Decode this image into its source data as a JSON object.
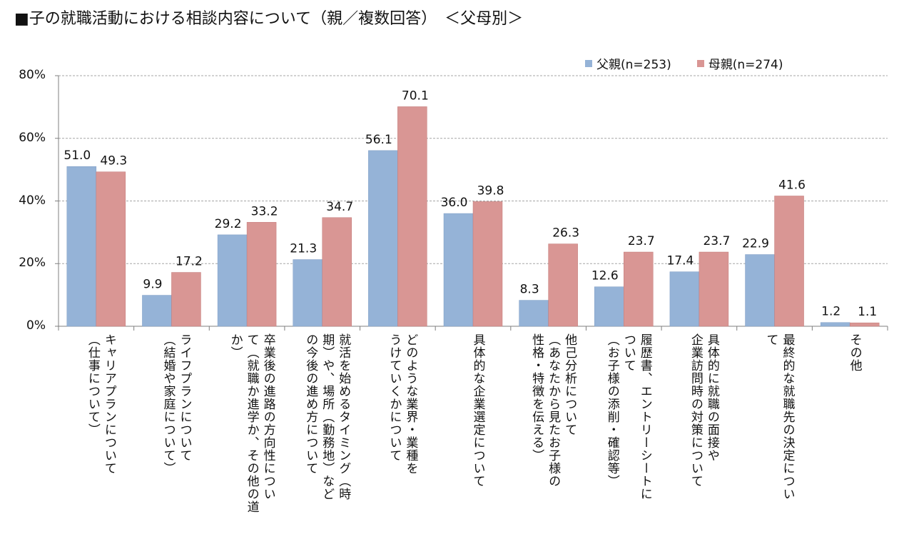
{
  "title": "■子の就職活動における相談内容について（親／複数回答）　＜父母別＞",
  "colors": {
    "father": "#95b3d7",
    "mother": "#d99694",
    "grid": "#a6a6a6"
  },
  "chart_data": {
    "type": "bar",
    "title": "■子の就職活動における相談内容について（親／複数回答）　＜父母別＞",
    "ylim": [
      0,
      80
    ],
    "yticks": [
      "0%",
      "20%",
      "40%",
      "60%",
      "80%"
    ],
    "grid": true,
    "legend_position": "top-right",
    "categories": [
      "キャリアプランについて\n（仕事について）",
      "ライフプランについて\n（結婚や家庭について）",
      "卒業後の進路の方向性につい\nて（就職か進学か、その他の道\nか）",
      "就活を始めるタイミング（時\n期）や、場所（勤務地）など\nの今後の進め方について",
      "どのような業界・業種を\nうけていくかについて",
      "具体的な企業選定について",
      "他己分析について\n（あなたから見たお子様の\n性格・特徴を伝える）",
      "履歴書、エントリーシートに\nついて\n（お子様の添削・確認等）",
      "具体的に就職の面接や\n企業訪問時の対策について",
      "最終的な就職先の決定につい\nて",
      "その他"
    ],
    "series": [
      {
        "name": "父親(n=253)",
        "values": [
          51.0,
          9.9,
          29.2,
          21.3,
          56.1,
          36.0,
          8.3,
          12.6,
          17.4,
          22.9,
          1.2
        ],
        "labels": [
          "51.0",
          "9.9",
          "29.2",
          "21.3",
          "56.1",
          "36.0",
          "8.3",
          "12.6",
          "17.4",
          "22.9",
          "1.2"
        ]
      },
      {
        "name": "母親(n=274)",
        "values": [
          49.3,
          17.2,
          33.2,
          34.7,
          70.1,
          39.8,
          26.3,
          23.7,
          23.7,
          41.6,
          1.1
        ],
        "labels": [
          "49.3",
          "17.2",
          "33.2",
          "34.7",
          "70.1",
          "39.8",
          "26.3",
          "23.7",
          "23.7",
          "41.6",
          "1.1"
        ]
      }
    ]
  }
}
